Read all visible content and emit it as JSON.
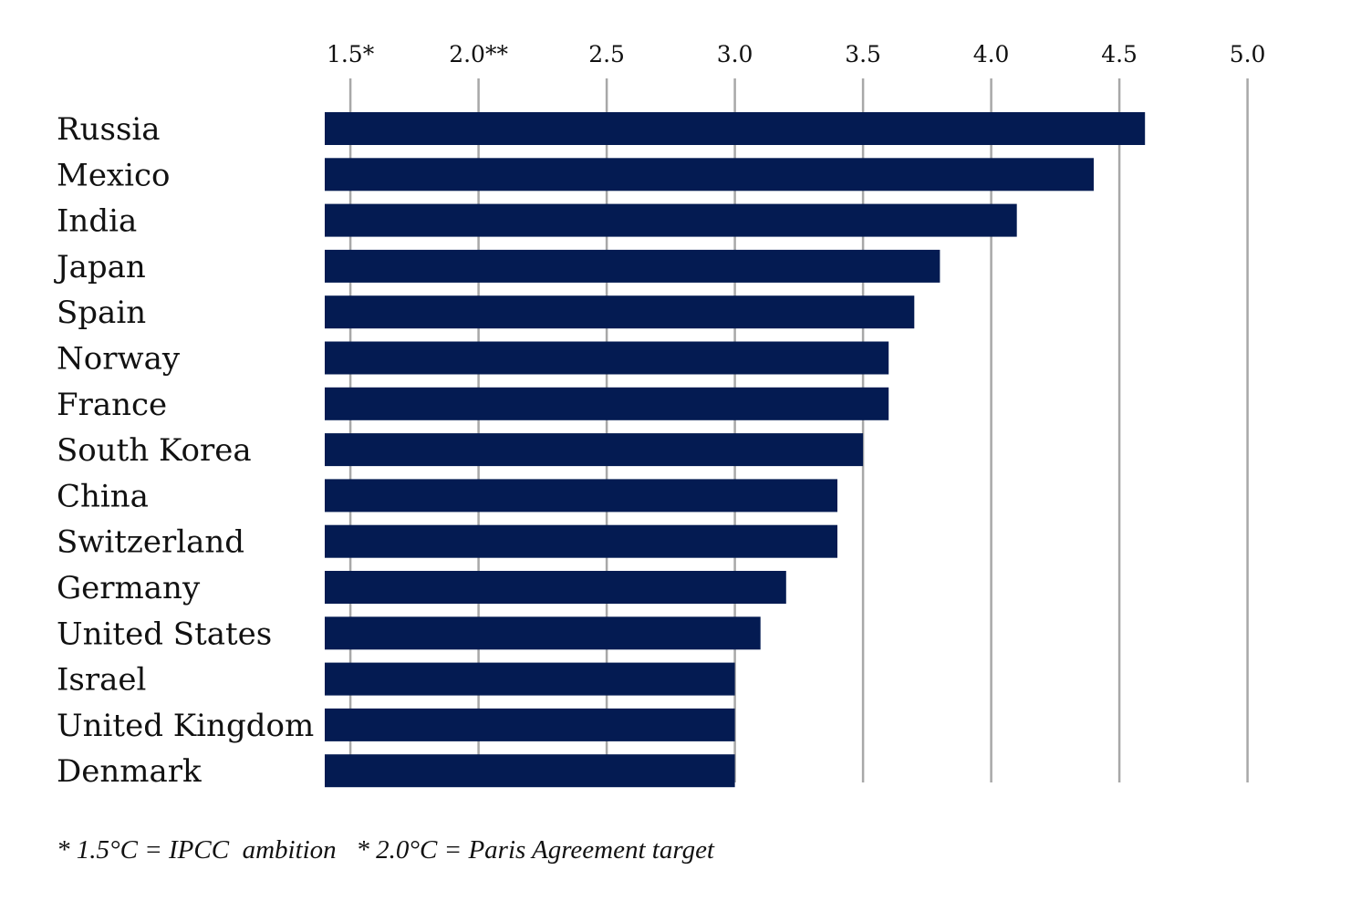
{
  "chart_data": {
    "type": "bar",
    "orientation": "horizontal",
    "bar_color": "#041b52",
    "grid": true,
    "legend": "none",
    "xlim": [
      1.4,
      5.0
    ],
    "x_ticks": [
      {
        "value": 1.5,
        "label": "1.5*"
      },
      {
        "value": 2.0,
        "label": "2.0**"
      },
      {
        "value": 2.5,
        "label": "2.5"
      },
      {
        "value": 3.0,
        "label": "3.0"
      },
      {
        "value": 3.5,
        "label": "3.5"
      },
      {
        "value": 4.0,
        "label": "4.0"
      },
      {
        "value": 4.5,
        "label": "4.5"
      },
      {
        "value": 5.0,
        "label": "5.0"
      }
    ],
    "categories": [
      "Russia",
      "Mexico",
      "India",
      "Japan",
      "Spain",
      "Norway",
      "France",
      "South Korea",
      "China",
      "Switzerland",
      "Germany",
      "United States",
      "Israel",
      "United Kingdom",
      "Denmark"
    ],
    "values": [
      4.6,
      4.4,
      4.1,
      3.8,
      3.7,
      3.6,
      3.6,
      3.5,
      3.4,
      3.4,
      3.2,
      3.1,
      3.0,
      3.0,
      3.0
    ],
    "footnote": "* 1.5°C = IPCC  ambition   * 2.0°C = Paris Agreement target"
  }
}
